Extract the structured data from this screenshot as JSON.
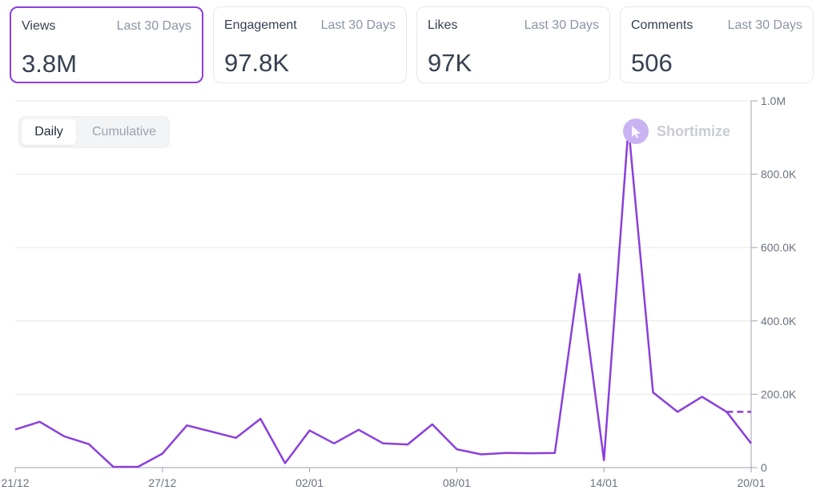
{
  "metrics": [
    {
      "label": "Views",
      "period": "Last 30 Days",
      "value": "3.8M",
      "active": true
    },
    {
      "label": "Engagement",
      "period": "Last 30 Days",
      "value": "97.8K",
      "active": false
    },
    {
      "label": "Likes",
      "period": "Last 30 Days",
      "value": "97K",
      "active": false
    },
    {
      "label": "Comments",
      "period": "Last 30 Days",
      "value": "506",
      "active": false
    }
  ],
  "toggle": {
    "daily": "Daily",
    "cumulative": "Cumulative",
    "selected": "Daily"
  },
  "brand": {
    "name": "Shortimize"
  },
  "colors": {
    "accent": "#8b3fdc",
    "grid": "#e5e7eb",
    "muted": "#9ca3af",
    "text": "#374151"
  },
  "chart_data": {
    "type": "line",
    "title": "Views",
    "ylim": [
      0,
      1000000
    ],
    "yticks": [
      {
        "value": 0,
        "label": "0"
      },
      {
        "value": 200000,
        "label": "200.0K"
      },
      {
        "value": 400000,
        "label": "400.0K"
      },
      {
        "value": 600000,
        "label": "600.0K"
      },
      {
        "value": 800000,
        "label": "800.0K"
      },
      {
        "value": 1000000,
        "label": "1.0M"
      }
    ],
    "xticks": [
      {
        "index": 0,
        "label": "21/12"
      },
      {
        "index": 6,
        "label": "27/12"
      },
      {
        "index": 12,
        "label": "02/01"
      },
      {
        "index": 18,
        "label": "08/01"
      },
      {
        "index": 24,
        "label": "14/01"
      },
      {
        "index": 30,
        "label": "20/01"
      }
    ],
    "x": [
      "21/12",
      "22/12",
      "23/12",
      "24/12",
      "25/12",
      "26/12",
      "27/12",
      "28/12",
      "29/12",
      "30/12",
      "31/12",
      "01/01",
      "02/01",
      "03/01",
      "04/01",
      "05/01",
      "06/01",
      "07/01",
      "08/01",
      "09/01",
      "10/01",
      "11/01",
      "12/01",
      "13/01",
      "14/01",
      "15/01",
      "16/01",
      "17/01",
      "18/01",
      "19/01",
      "20/01"
    ],
    "series": [
      {
        "name": "Views",
        "values": [
          104000,
          125000,
          85000,
          64000,
          2000,
          2000,
          38000,
          115000,
          98000,
          81000,
          133000,
          12000,
          101000,
          66000,
          103000,
          66000,
          63000,
          118000,
          50000,
          36000,
          40000,
          39000,
          40000,
          528000,
          20000,
          930000,
          205000,
          152000,
          193000,
          152000,
          66000
        ]
      }
    ],
    "dashed": {
      "from_index": 29,
      "to_index": 30,
      "value": 152000
    }
  }
}
